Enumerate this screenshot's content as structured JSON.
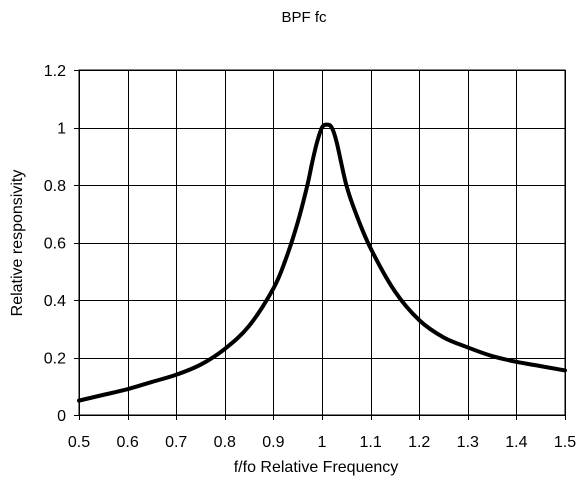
{
  "chart_data": {
    "type": "line",
    "title": "BPF fc",
    "xlabel": "f/fo Relative Frequency",
    "ylabel": "Relative responsivity",
    "xlim": [
      0.5,
      1.5
    ],
    "ylim": [
      0,
      1.2
    ],
    "x_ticks": [
      "0.5",
      "0.6",
      "0.7",
      "0.8",
      "0.9",
      "1",
      "1.1",
      "1.2",
      "1.3",
      "1.4",
      "1.5"
    ],
    "y_ticks": [
      "0",
      "0.2",
      "0.4",
      "0.6",
      "0.8",
      "1",
      "1.2"
    ],
    "grid": true,
    "legend": "none",
    "line_color": "#000000",
    "series": [
      {
        "x": [
          0.5,
          0.55,
          0.6,
          0.65,
          0.7,
          0.75,
          0.8,
          0.85,
          0.9,
          0.925,
          0.95,
          0.97,
          0.98,
          0.99,
          1.0,
          1.01,
          1.02,
          1.03,
          1.05,
          1.07,
          1.1,
          1.15,
          1.2,
          1.25,
          1.3,
          1.35,
          1.4,
          1.45,
          1.5
        ],
        "y": [
          0.05,
          0.07,
          0.09,
          0.115,
          0.14,
          0.175,
          0.23,
          0.31,
          0.44,
          0.54,
          0.67,
          0.8,
          0.88,
          0.95,
          1.0,
          1.01,
          1.0,
          0.95,
          0.8,
          0.7,
          0.58,
          0.43,
          0.33,
          0.27,
          0.235,
          0.205,
          0.185,
          0.17,
          0.155
        ]
      }
    ]
  }
}
